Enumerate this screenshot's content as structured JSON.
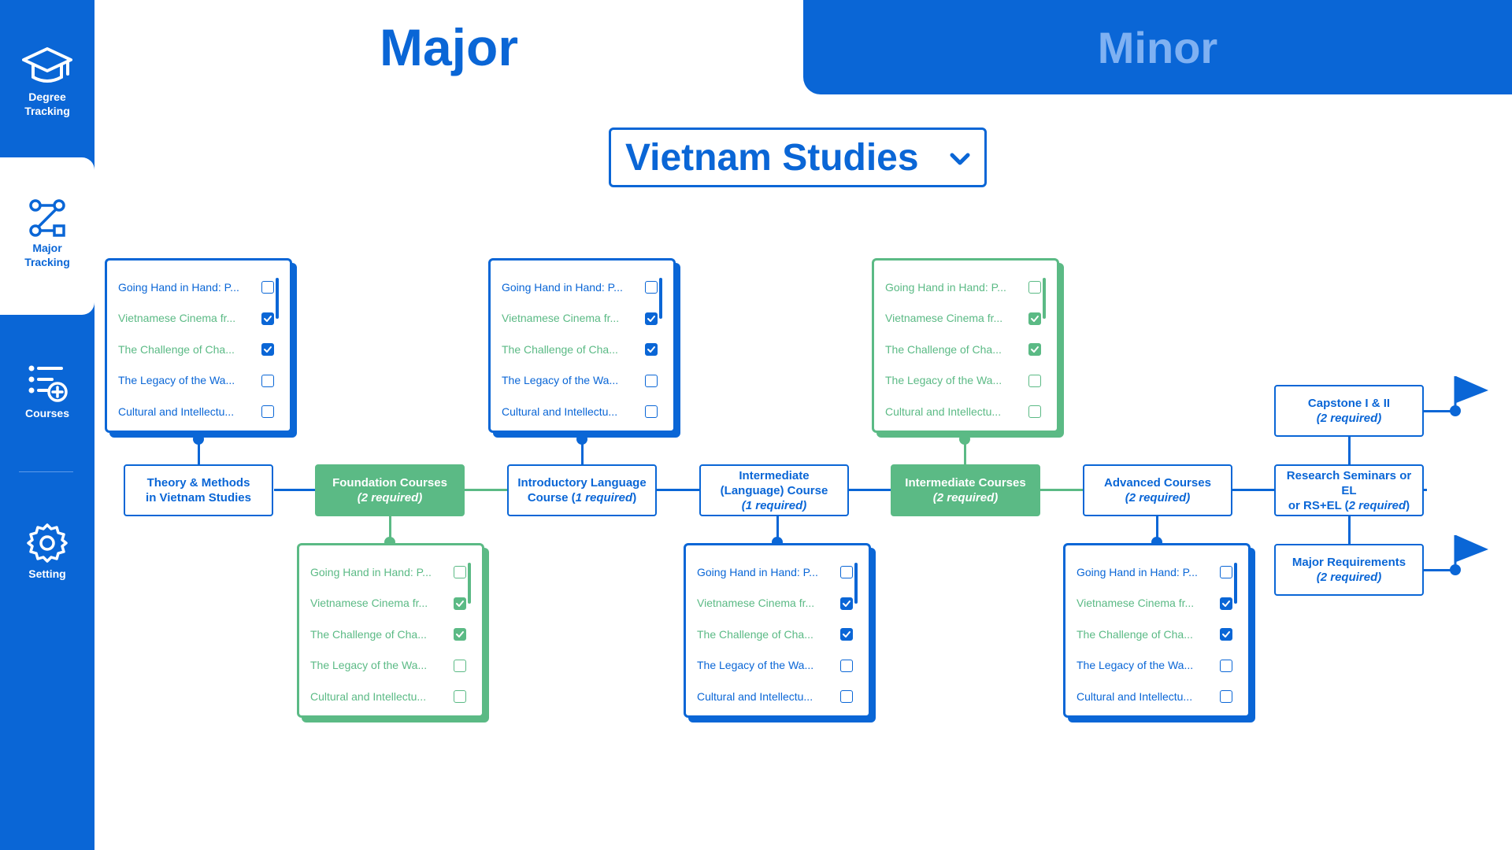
{
  "sidebar": {
    "items": [
      {
        "label": "Degree\nTracking",
        "icon": "graduation-cap-icon"
      },
      {
        "label": "Major\nTracking",
        "icon": "route-icon"
      },
      {
        "label": "Courses",
        "icon": "course-list-add-icon"
      },
      {
        "label": "Setting",
        "icon": "gear-icon"
      }
    ]
  },
  "tabs": {
    "major": "Major",
    "minor": "Minor"
  },
  "program_select": {
    "value": "Vietnam Studies"
  },
  "nodes": {
    "theory": {
      "line1": "Theory & Methods",
      "line2": "in Vietnam Studies"
    },
    "foundation": {
      "line1": "Foundation Courses",
      "req": "(2 required)"
    },
    "intro_lang": {
      "line1": "Introductory Language",
      "line2a": "Course (",
      "req": "1 required",
      "line2b": ")"
    },
    "inter_lang": {
      "line1": "Intermediate",
      "line2": "(Language) Course",
      "req": "(1 required)"
    },
    "inter_courses": {
      "line1": "Intermediate Courses",
      "req": "(2 required)"
    },
    "advanced": {
      "line1": "Advanced Courses",
      "req": "(2 required)"
    },
    "research": {
      "line1": "Research Seminars or EL",
      "line2a": "or RS+EL (",
      "req": "2 required",
      "line2b": ")"
    },
    "capstone": {
      "line1": "Capstone I & II",
      "req": "(2 required)"
    },
    "major_req": {
      "line1": "Major Requirements",
      "req": "(2 required)"
    }
  },
  "courses": [
    "Going Hand in Hand: P...",
    "Vietnamese Cinema fr...",
    "The Challenge of Cha...",
    "The Legacy of the Wa...",
    "Cultural and Intellectu..."
  ],
  "colors": {
    "primary": "#0a66d6",
    "completed": "#5bba85",
    "inactive_tab_text": "#7fb1f2"
  }
}
